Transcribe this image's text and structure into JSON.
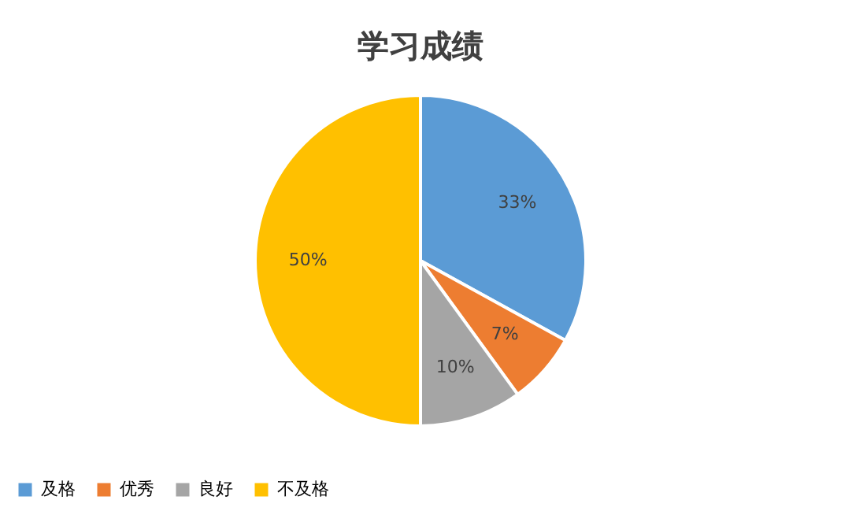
{
  "chart_data": {
    "type": "pie",
    "title": "学习成绩",
    "categories": [
      "及格",
      "优秀",
      "良好",
      "不及格"
    ],
    "values": [
      33,
      7,
      10,
      50
    ],
    "colors": [
      "#5b9bd5",
      "#ed7d31",
      "#a5a5a5",
      "#ffc000"
    ],
    "value_labels": [
      "33%",
      "7%",
      "10%",
      "50%"
    ],
    "legend": "bottom"
  }
}
